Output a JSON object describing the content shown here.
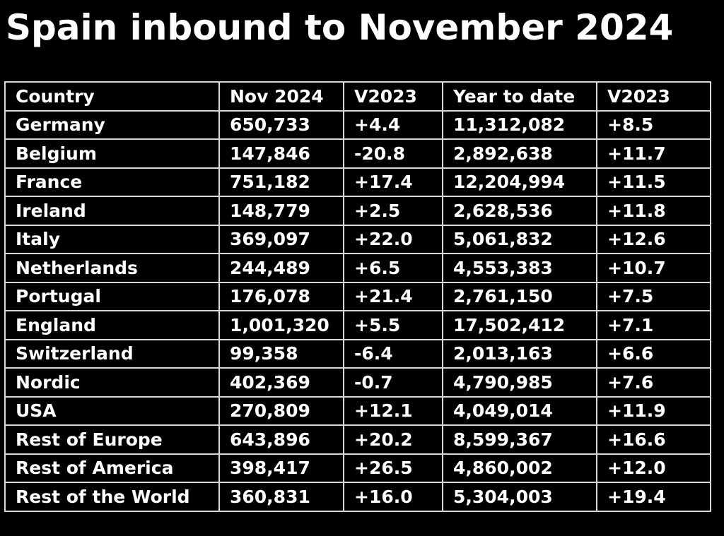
{
  "title": "Spain inbound to November 2024",
  "table": {
    "headers": [
      "Country",
      "Nov 2024",
      "V2023",
      "Year to date",
      "V2023"
    ],
    "rows": [
      [
        "Germany",
        "650,733",
        "+4.4",
        "11,312,082",
        "+8.5"
      ],
      [
        "Belgium",
        "147,846",
        "-20.8",
        "2,892,638",
        "+11.7"
      ],
      [
        "France",
        "751,182",
        "+17.4",
        "12,204,994",
        "+11.5"
      ],
      [
        "Ireland",
        "148,779",
        "+2.5",
        "2,628,536",
        "+11.8"
      ],
      [
        "Italy",
        "369,097",
        "+22.0",
        "5,061,832",
        "+12.6"
      ],
      [
        "Netherlands",
        "244,489",
        "+6.5",
        "4,553,383",
        "+10.7"
      ],
      [
        "Portugal",
        "176,078",
        "+21.4",
        "2,761,150",
        "+7.5"
      ],
      [
        "England",
        "1,001,320",
        "+5.5",
        "17,502,412",
        "+7.1"
      ],
      [
        "Switzerland",
        "99,358",
        "-6.4",
        "2,013,163",
        "+6.6"
      ],
      [
        "Nordic",
        "402,369",
        "-0.7",
        "4,790,985",
        "+7.6"
      ],
      [
        "USA",
        "270,809",
        "+12.1",
        "4,049,014",
        "+11.9"
      ],
      [
        "Rest of Europe",
        "643,896",
        "+20.2",
        "8,599,367",
        "+16.6"
      ],
      [
        "Rest of America",
        "398,417",
        "+26.5",
        "4,860,002",
        "+12.0"
      ],
      [
        "Rest of the World",
        "360,831",
        "+16.0",
        "5,304,003",
        "+19.4"
      ]
    ]
  },
  "colors": {
    "background": "#000000",
    "text": "#ffffff",
    "grid": "#d8d8d8"
  }
}
